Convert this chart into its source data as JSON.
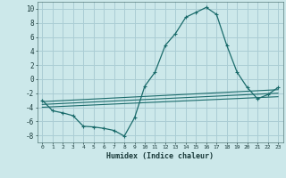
{
  "xlabel": "Humidex (Indice chaleur)",
  "bg_color": "#cce8ea",
  "grid_color": "#aacdd4",
  "line_color": "#1a6b6b",
  "xlim": [
    -0.5,
    23.5
  ],
  "ylim": [
    -9,
    11
  ],
  "yticks": [
    -8,
    -6,
    -4,
    -2,
    0,
    2,
    4,
    6,
    8,
    10
  ],
  "xticks": [
    0,
    1,
    2,
    3,
    4,
    5,
    6,
    7,
    8,
    9,
    10,
    11,
    12,
    13,
    14,
    15,
    16,
    17,
    18,
    19,
    20,
    21,
    22,
    23
  ],
  "series": {
    "main": {
      "x": [
        0,
        1,
        2,
        3,
        4,
        5,
        6,
        7,
        8,
        9,
        10,
        11,
        12,
        13,
        14,
        15,
        16,
        17,
        18,
        19,
        20,
        21,
        22,
        23
      ],
      "y": [
        -3.0,
        -4.5,
        -4.8,
        -5.2,
        -6.7,
        -6.8,
        -7.0,
        -7.3,
        -8.1,
        -5.5,
        -1.0,
        1.0,
        4.8,
        6.5,
        8.8,
        9.5,
        10.2,
        9.2,
        4.8,
        1.0,
        -1.2,
        -2.8,
        -2.2,
        -1.2
      ]
    },
    "line1": {
      "x": [
        0,
        23
      ],
      "y": [
        -3.2,
        -1.5
      ]
    },
    "line2": {
      "x": [
        0,
        23
      ],
      "y": [
        -3.6,
        -2.0
      ]
    },
    "line3": {
      "x": [
        0,
        23
      ],
      "y": [
        -4.0,
        -2.5
      ]
    }
  }
}
